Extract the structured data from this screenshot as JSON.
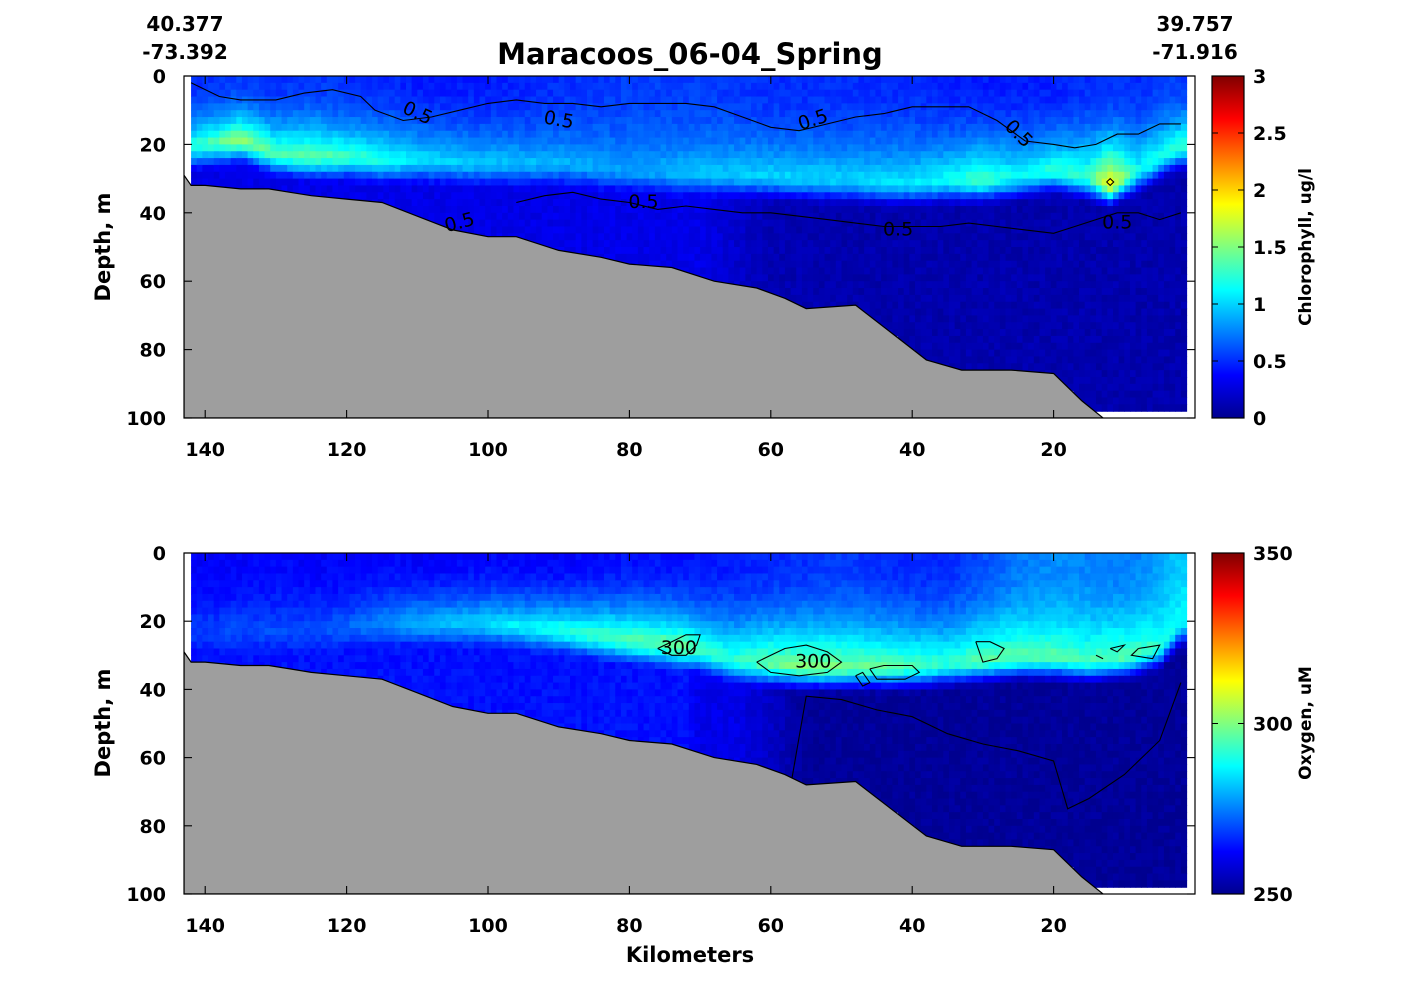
{
  "figure": {
    "title": "Maracoos_06-04_Spring",
    "start_lat": "40.377",
    "start_lon": "-73.392",
    "end_lat": "39.757",
    "end_lon": "-71.916",
    "xlabel": "Kilometers"
  },
  "colors": {
    "bathymetry": "#9e9e9e",
    "contour": "#000000",
    "no_data": "#ffffff",
    "colormap": "jet"
  },
  "chart_data": [
    {
      "type": "heatmap",
      "variable": "Chlorophyll",
      "xlabel": "",
      "ylabel": "Depth, m",
      "xlim": [
        143,
        0
      ],
      "ylim": [
        0,
        100
      ],
      "x_direction": "reversed",
      "y_direction": "depth-down",
      "x_ticks": [
        140,
        120,
        100,
        80,
        60,
        40,
        20
      ],
      "y_ticks": [
        0,
        20,
        40,
        60,
        80,
        100
      ],
      "colorbar": {
        "label": "Chlorophyll, ug/l",
        "min": 0,
        "max": 3,
        "ticks": [
          "0",
          "0.5",
          "1",
          "1.5",
          "2",
          "2.5",
          "3"
        ]
      },
      "data_extent_km": [
        142,
        2
      ],
      "bottom_depth": {
        "x": [
          143,
          142,
          140,
          135,
          131,
          128,
          125,
          120,
          115,
          110,
          105,
          100,
          96,
          90,
          84,
          80,
          74,
          68,
          62,
          58,
          55,
          48,
          43,
          38,
          33,
          26,
          20,
          16,
          13
        ],
        "depth": [
          29,
          32,
          32,
          33,
          33,
          34,
          35,
          36,
          37,
          41,
          45,
          47,
          47,
          51,
          53,
          55,
          56,
          60,
          62,
          65,
          68,
          67,
          75,
          83,
          86,
          86,
          87,
          95,
          100
        ]
      },
      "profile": {
        "x": [
          142,
          135,
          130,
          125,
          120,
          115,
          110,
          100,
          90,
          80,
          70,
          60,
          50,
          40,
          35,
          30,
          25,
          20,
          15,
          12,
          8,
          4,
          2
        ],
        "surface_value": [
          0.5,
          0.55,
          0.5,
          0.55,
          0.5,
          0.5,
          0.45,
          0.45,
          0.5,
          0.55,
          0.55,
          0.5,
          0.5,
          0.5,
          0.45,
          0.45,
          0.45,
          0.45,
          0.5,
          0.5,
          0.5,
          0.55,
          0.55
        ],
        "peak_depth": [
          20,
          18,
          22,
          23,
          23,
          24,
          24,
          25,
          25,
          27,
          28,
          29,
          30,
          31,
          30,
          30,
          29,
          27,
          29,
          31,
          27,
          22,
          20
        ],
        "peak_value": [
          1.2,
          1.55,
          1.35,
          1.4,
          1.3,
          1.2,
          1.05,
          0.95,
          0.9,
          0.85,
          0.95,
          1.0,
          1.0,
          1.05,
          1.15,
          1.35,
          1.1,
          1.25,
          1.3,
          1.9,
          1.15,
          1.25,
          1.3
        ],
        "deep_value": [
          0.3,
          0.3,
          0.3,
          0.3,
          0.3,
          0.3,
          0.3,
          0.3,
          0.3,
          0.3,
          0.3,
          0.12,
          0.1,
          0.1,
          0.1,
          0.1,
          0.1,
          0.1,
          0.1,
          0.1,
          0.1,
          0.1,
          0.1
        ]
      },
      "contours": [
        {
          "level": 0.5,
          "x": [
            142,
            138,
            135,
            130,
            126,
            122,
            118,
            116,
            112,
            108,
            104,
            100,
            96,
            92,
            88,
            84,
            80,
            76,
            72,
            68,
            64,
            60,
            56,
            52,
            48,
            44,
            40,
            36,
            32,
            28,
            24,
            20,
            17,
            14,
            11,
            8,
            5,
            2
          ],
          "depth": [
            2,
            6,
            7,
            7,
            5,
            4,
            6,
            10,
            13,
            12,
            10,
            8,
            7,
            8,
            8,
            9,
            8,
            8,
            8,
            9,
            12,
            15,
            16,
            14,
            12,
            11,
            9,
            9,
            9,
            13,
            19,
            20,
            21,
            20,
            17,
            17,
            14,
            14
          ]
        },
        {
          "level": 0.5,
          "x": [
            96,
            92,
            88,
            84,
            80,
            76,
            72,
            68,
            64,
            60,
            56,
            52,
            48,
            44,
            40,
            36,
            32,
            28,
            24,
            20,
            17,
            14,
            11,
            8,
            5,
            2
          ],
          "depth": [
            37,
            35,
            34,
            36,
            37,
            39,
            38,
            39,
            40,
            40,
            41,
            42,
            43,
            44,
            44,
            44,
            43,
            44,
            45,
            46,
            44,
            42,
            40,
            40,
            42,
            40
          ]
        },
        {
          "level": 2,
          "x": [
            12.5,
            12,
            11.5,
            12,
            12.5
          ],
          "depth": [
            31,
            30,
            31,
            32,
            31
          ]
        }
      ],
      "contour_labels": [
        {
          "text": "0.5",
          "x": 110,
          "depth": 11,
          "angle": 25
        },
        {
          "text": "0.5",
          "x": 90,
          "depth": 13,
          "angle": 10
        },
        {
          "text": "0.5",
          "x": 54,
          "depth": 13,
          "angle": -18
        },
        {
          "text": "0.5",
          "x": 25,
          "depth": 17,
          "angle": 45
        },
        {
          "text": "0.5",
          "x": 104,
          "depth": 43,
          "angle": -15
        },
        {
          "text": "0.5",
          "x": 78,
          "depth": 37,
          "angle": 0
        },
        {
          "text": "0.5",
          "x": 42,
          "depth": 45,
          "angle": 0
        },
        {
          "text": "0.5",
          "x": 11,
          "depth": 43,
          "angle": 0
        }
      ]
    },
    {
      "type": "heatmap",
      "variable": "Oxygen",
      "xlabel": "Kilometers",
      "ylabel": "Depth, m",
      "xlim": [
        143,
        0
      ],
      "ylim": [
        0,
        100
      ],
      "x_direction": "reversed",
      "y_direction": "depth-down",
      "x_ticks": [
        140,
        120,
        100,
        80,
        60,
        40,
        20
      ],
      "y_ticks": [
        0,
        20,
        40,
        60,
        80,
        100
      ],
      "colorbar": {
        "label": "Oxygen, uM",
        "min": 250,
        "max": 350,
        "ticks": [
          "250",
          "300",
          "350"
        ]
      },
      "data_extent_km": [
        142,
        2
      ],
      "bottom_depth": {
        "x": [
          143,
          142,
          140,
          135,
          131,
          128,
          125,
          120,
          115,
          110,
          105,
          100,
          96,
          90,
          84,
          80,
          74,
          68,
          62,
          58,
          55,
          48,
          43,
          38,
          33,
          26,
          20,
          16,
          13
        ],
        "depth": [
          29,
          32,
          32,
          33,
          33,
          34,
          35,
          36,
          37,
          41,
          45,
          47,
          47,
          51,
          53,
          55,
          56,
          60,
          62,
          65,
          68,
          67,
          75,
          83,
          86,
          86,
          87,
          95,
          100
        ]
      },
      "profile": {
        "x": [
          142,
          135,
          130,
          125,
          120,
          115,
          110,
          100,
          90,
          80,
          72,
          70,
          65,
          60,
          55,
          50,
          45,
          40,
          35,
          30,
          25,
          20,
          15,
          10,
          5,
          2
        ],
        "surface_value": [
          262,
          262,
          263,
          262,
          262,
          263,
          262,
          263,
          262,
          264,
          264,
          264,
          265,
          266,
          267,
          268,
          267,
          266,
          266,
          270,
          274,
          276,
          275,
          274,
          278,
          283
        ],
        "peak_depth": [
          22,
          22,
          22,
          22,
          21,
          20,
          20,
          20,
          22,
          25,
          27,
          28,
          31,
          32,
          33,
          33,
          33,
          33,
          32,
          31,
          30,
          30,
          31,
          30,
          27,
          20
        ],
        "peak_value": [
          268,
          270,
          270,
          270,
          272,
          276,
          280,
          284,
          290,
          296,
          298,
          293,
          292,
          298,
          300,
          299,
          297,
          295,
          292,
          297,
          296,
          296,
          294,
          296,
          292,
          288
        ],
        "deep_value": [
          264,
          264,
          264,
          264,
          264,
          264,
          264,
          264,
          264,
          264,
          264,
          260,
          260,
          256,
          251,
          251,
          251,
          251,
          251,
          251,
          251,
          251,
          251,
          251,
          251,
          251
        ]
      },
      "contours": [
        {
          "level": 300,
          "x": [
            76,
            74,
            72,
            70,
            70.5,
            72,
            74,
            76
          ],
          "depth": [
            28,
            26,
            24,
            24,
            27,
            30,
            30,
            28
          ]
        },
        {
          "level": 300,
          "x": [
            62,
            60,
            58,
            55,
            52,
            50,
            52,
            56,
            60,
            62
          ],
          "depth": [
            32,
            30,
            28,
            27,
            29,
            32,
            35,
            36,
            35,
            32
          ]
        },
        {
          "level": 300,
          "x": [
            46,
            44,
            40,
            39,
            41,
            45,
            46
          ],
          "depth": [
            34,
            33,
            33,
            35,
            37,
            37,
            34
          ]
        },
        {
          "level": 300,
          "x": [
            48,
            47,
            46,
            47,
            48
          ],
          "depth": [
            36,
            35,
            38,
            39,
            36
          ]
        },
        {
          "level": 300,
          "x": [
            31,
            29,
            27,
            28,
            30,
            31
          ],
          "depth": [
            26,
            26,
            28,
            31,
            32,
            26
          ]
        },
        {
          "level": 300,
          "x": [
            8,
            5,
            6,
            9,
            8
          ],
          "depth": [
            28,
            27,
            31,
            30,
            28
          ]
        },
        {
          "level": 300,
          "x": [
            12,
            10,
            11,
            12
          ],
          "depth": [
            28,
            27,
            29,
            28
          ]
        },
        {
          "level": 300,
          "x": [
            14,
            13,
            14
          ],
          "depth": [
            30,
            31,
            30
          ]
        },
        {
          "level": 255,
          "x": [
            57,
            55,
            50,
            45,
            40,
            35,
            30,
            25,
            20,
            19,
            18,
            15,
            10,
            5,
            2
          ],
          "depth": [
            66,
            42,
            43,
            46,
            48,
            53,
            56,
            58,
            61,
            68,
            75,
            72,
            65,
            55,
            38
          ]
        }
      ],
      "contour_labels": [
        {
          "text": "300",
          "x": 73,
          "depth": 28,
          "angle": 0
        },
        {
          "text": "300",
          "x": 54,
          "depth": 32,
          "angle": 0
        }
      ]
    }
  ]
}
